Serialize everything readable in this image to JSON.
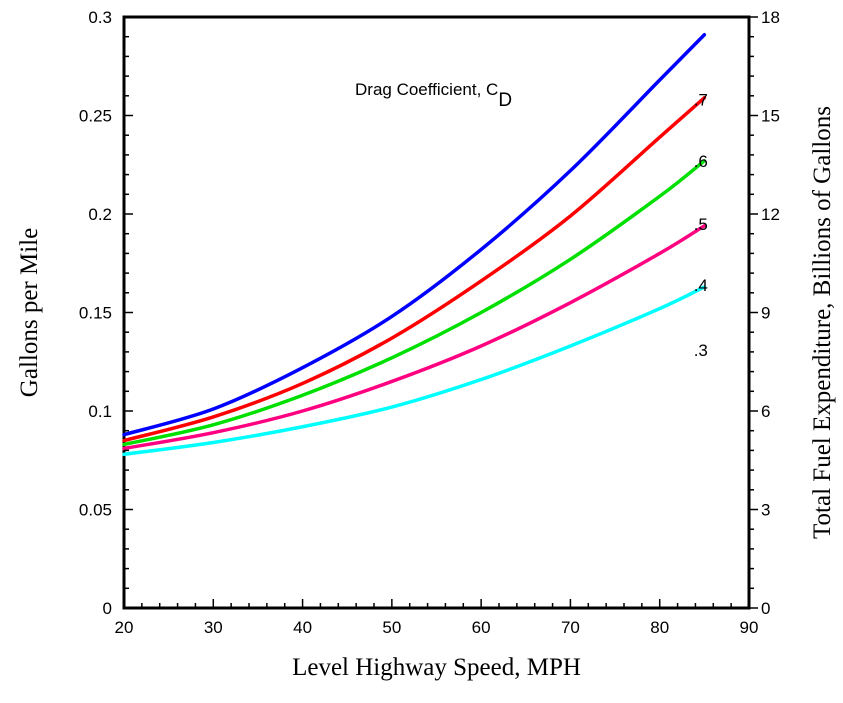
{
  "chart_data": {
    "type": "line",
    "xlabel": "Level Highway Speed, MPH",
    "ylabel": "Gallons per Mile",
    "y2label": "Total Fuel Expenditure, Billions of Gallons",
    "xlim": [
      20,
      90
    ],
    "ylim": [
      0,
      0.3
    ],
    "y2lim": [
      0,
      18
    ],
    "x_ticks": [
      "20",
      "30",
      "40",
      "50",
      "60",
      "70",
      "80",
      "90"
    ],
    "y_ticks": [
      "0",
      "0.05",
      "0.1",
      "0.15",
      "0.2",
      "0.25",
      "0.3"
    ],
    "y2_ticks": [
      "0",
      "3",
      "6",
      "9",
      "12",
      "15",
      "18"
    ],
    "legend_title": "Drag Coefficient, C",
    "legend_title_sub": "D",
    "grid": false,
    "x": [
      20,
      30,
      40,
      50,
      60,
      70,
      80,
      85
    ],
    "series": [
      {
        "name": ".7",
        "color": "#0000ff",
        "values": [
          0.088,
          0.101,
          0.122,
          0.148,
          0.182,
          0.222,
          0.268,
          0.291
        ]
      },
      {
        "name": ".6",
        "color": "#ff0000",
        "values": [
          0.085,
          0.097,
          0.114,
          0.137,
          0.166,
          0.199,
          0.239,
          0.259
        ]
      },
      {
        "name": ".5",
        "color": "#00e000",
        "values": [
          0.083,
          0.093,
          0.108,
          0.127,
          0.15,
          0.177,
          0.209,
          0.227
        ]
      },
      {
        "name": ".4",
        "color": "#ff0080",
        "values": [
          0.081,
          0.089,
          0.1,
          0.115,
          0.133,
          0.155,
          0.18,
          0.194
        ]
      },
      {
        "name": ".3",
        "color": "#00ffff",
        "values": [
          0.078,
          0.084,
          0.092,
          0.102,
          0.116,
          0.133,
          0.152,
          0.163
        ]
      }
    ]
  }
}
